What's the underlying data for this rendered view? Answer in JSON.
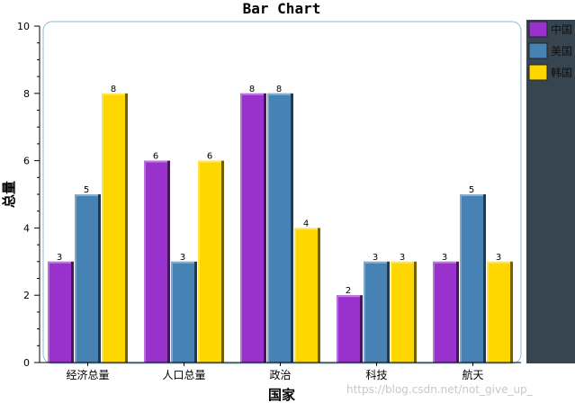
{
  "watermark": "https://blog.csdn.net/not_give_up_",
  "chart_data": {
    "type": "bar",
    "title": "Bar Chart",
    "xlabel": "国家",
    "ylabel": "总量",
    "ylim": [
      0,
      10
    ],
    "yticks": [
      0,
      2,
      4,
      6,
      8,
      10
    ],
    "categories": [
      "经济总量",
      "人口总量",
      "政治",
      "科技",
      "航天"
    ],
    "series": [
      {
        "name": "中国",
        "color": "#9932CC",
        "values": [
          3,
          6,
          8,
          2,
          3
        ]
      },
      {
        "name": "美国",
        "color": "#4682B4",
        "values": [
          5,
          3,
          8,
          3,
          5
        ]
      },
      {
        "name": "韩国",
        "color": "#FFD700",
        "values": [
          8,
          6,
          4,
          3,
          3
        ]
      }
    ],
    "data_labels": true,
    "grid": false,
    "legend_position": "right",
    "legend_background": "#36454F"
  }
}
